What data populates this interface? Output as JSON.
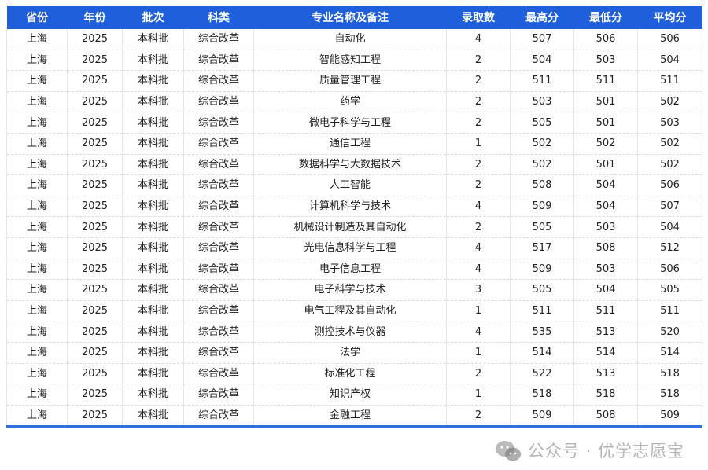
{
  "table": {
    "headers": [
      "省份",
      "年份",
      "批次",
      "科类",
      "专业名称及备注",
      "录取数",
      "最高分",
      "最低分",
      "平均分"
    ],
    "rows": [
      [
        "上海",
        "2025",
        "本科批",
        "综合改革",
        "自动化",
        "4",
        "507",
        "506",
        "506"
      ],
      [
        "上海",
        "2025",
        "本科批",
        "综合改革",
        "智能感知工程",
        "2",
        "504",
        "503",
        "504"
      ],
      [
        "上海",
        "2025",
        "本科批",
        "综合改革",
        "质量管理工程",
        "2",
        "511",
        "511",
        "511"
      ],
      [
        "上海",
        "2025",
        "本科批",
        "综合改革",
        "药学",
        "2",
        "503",
        "501",
        "502"
      ],
      [
        "上海",
        "2025",
        "本科批",
        "综合改革",
        "微电子科学与工程",
        "2",
        "505",
        "501",
        "503"
      ],
      [
        "上海",
        "2025",
        "本科批",
        "综合改革",
        "通信工程",
        "1",
        "502",
        "502",
        "502"
      ],
      [
        "上海",
        "2025",
        "本科批",
        "综合改革",
        "数据科学与大数据技术",
        "2",
        "502",
        "501",
        "502"
      ],
      [
        "上海",
        "2025",
        "本科批",
        "综合改革",
        "人工智能",
        "2",
        "508",
        "504",
        "506"
      ],
      [
        "上海",
        "2025",
        "本科批",
        "综合改革",
        "计算机科学与技术",
        "4",
        "509",
        "504",
        "507"
      ],
      [
        "上海",
        "2025",
        "本科批",
        "综合改革",
        "机械设计制造及其自动化",
        "2",
        "505",
        "503",
        "504"
      ],
      [
        "上海",
        "2025",
        "本科批",
        "综合改革",
        "光电信息科学与工程",
        "4",
        "517",
        "508",
        "512"
      ],
      [
        "上海",
        "2025",
        "本科批",
        "综合改革",
        "电子信息工程",
        "4",
        "509",
        "503",
        "506"
      ],
      [
        "上海",
        "2025",
        "本科批",
        "综合改革",
        "电子科学与技术",
        "3",
        "505",
        "504",
        "505"
      ],
      [
        "上海",
        "2025",
        "本科批",
        "综合改革",
        "电气工程及其自动化",
        "1",
        "511",
        "511",
        "511"
      ],
      [
        "上海",
        "2025",
        "本科批",
        "综合改革",
        "测控技术与仪器",
        "4",
        "535",
        "513",
        "520"
      ],
      [
        "上海",
        "2025",
        "本科批",
        "综合改革",
        "法学",
        "1",
        "514",
        "514",
        "514"
      ],
      [
        "上海",
        "2025",
        "本科批",
        "综合改革",
        "标准化工程",
        "2",
        "522",
        "513",
        "518"
      ],
      [
        "上海",
        "2025",
        "本科批",
        "综合改革",
        "知识产权",
        "1",
        "518",
        "518",
        "518"
      ],
      [
        "上海",
        "2025",
        "本科批",
        "综合改革",
        "金融工程",
        "2",
        "509",
        "508",
        "509"
      ]
    ]
  },
  "watermark": {
    "icon": "wechat-icon",
    "text": "公众号 · 优学志愿宝"
  },
  "colors": {
    "header_bg": "#1f5fdc",
    "header_text": "#ffffff"
  }
}
